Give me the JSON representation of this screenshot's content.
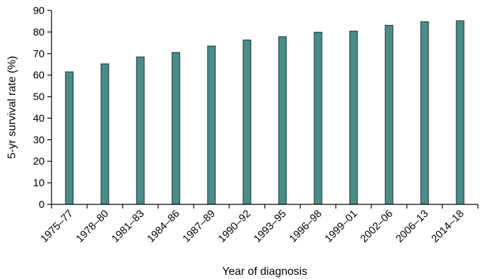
{
  "chart_data": {
    "type": "bar",
    "categories": [
      "1975–77",
      "1978–80",
      "1981–83",
      "1984–86",
      "1987–89",
      "1990–92",
      "1993–95",
      "1996–98",
      "1999–01",
      "2002–06",
      "2006–13",
      "2014–18"
    ],
    "values": [
      61.5,
      65.2,
      68.4,
      70.5,
      73.5,
      76.3,
      77.8,
      79.9,
      80.4,
      83.1,
      84.8,
      85.2
    ],
    "xlabel": "Year of diagnosis",
    "ylabel": "5-yr survival rate (%)",
    "ylim": [
      0,
      90
    ],
    "yticks": [
      0,
      10,
      20,
      30,
      40,
      50,
      60,
      70,
      80,
      90
    ],
    "colors": {
      "bar_fill": "#4a8c88",
      "bar_edge": "#0f2f2c"
    },
    "grid": false,
    "legend": "none"
  }
}
